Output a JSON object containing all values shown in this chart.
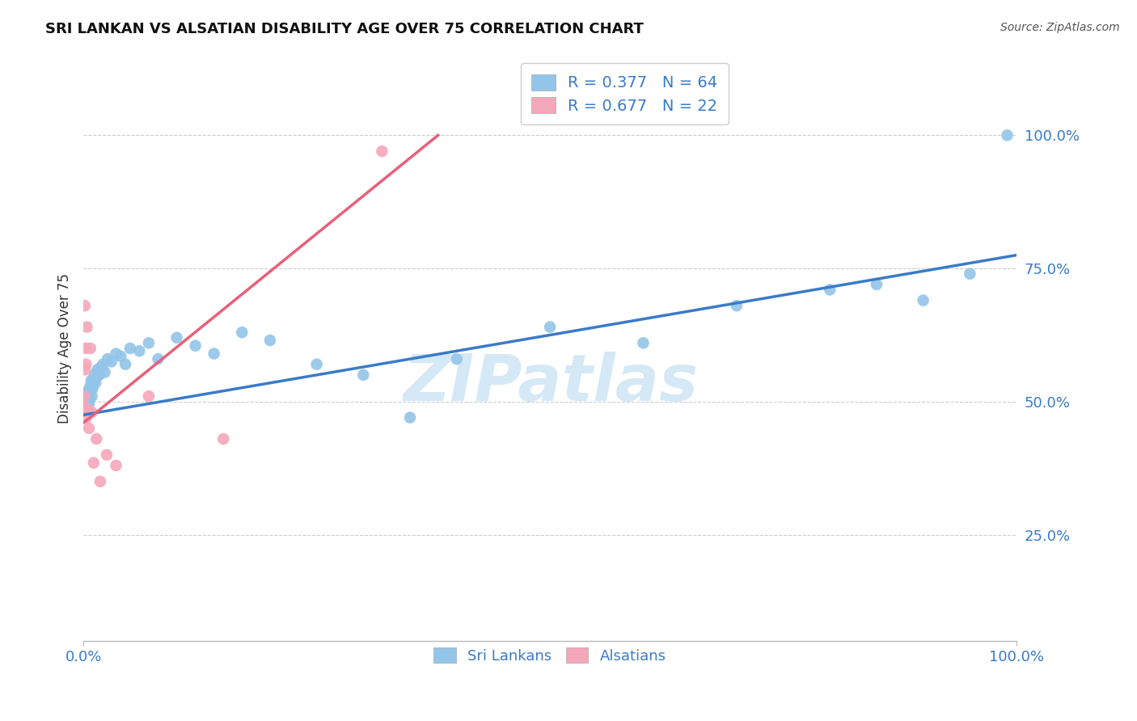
{
  "title": "SRI LANKAN VS ALSATIAN DISABILITY AGE OVER 75 CORRELATION CHART",
  "source": "Source: ZipAtlas.com",
  "ylabel": "Disability Age Over 75",
  "sri_lankan_R": 0.377,
  "sri_lankan_N": 64,
  "alsatian_R": 0.677,
  "alsatian_N": 22,
  "sri_lankan_color": "#92C5E8",
  "alsatian_color": "#F4A7B9",
  "sri_lankan_line_color": "#3A7BC8",
  "alsatian_line_color": "#E8607A",
  "legend_text_color": "#3A7BC8",
  "background_color": "#FFFFFF",
  "watermark_text": "ZIPatlas",
  "watermark_color": "#D5E8F5",
  "sri_lankans_x": [
    0.1,
    0.12,
    0.15,
    0.18,
    0.2,
    0.22,
    0.25,
    0.28,
    0.3,
    0.32,
    0.35,
    0.38,
    0.4,
    0.42,
    0.45,
    0.48,
    0.5,
    0.52,
    0.55,
    0.58,
    0.6,
    0.65,
    0.7,
    0.75,
    0.8,
    0.85,
    0.9,
    0.95,
    1.0,
    1.1,
    1.2,
    1.3,
    1.4,
    1.5,
    1.7,
    1.9,
    2.1,
    2.3,
    2.6,
    3.0,
    3.5,
    4.0,
    4.5,
    5.0,
    6.0,
    7.0,
    8.0,
    10.0,
    12.0,
    14.0,
    17.0,
    20.0,
    25.0,
    30.0,
    35.0,
    40.0,
    50.0,
    60.0,
    70.0,
    80.0,
    85.0,
    90.0,
    95.0,
    99.0
  ],
  "sri_lankans_y": [
    49.5,
    50.0,
    50.5,
    50.0,
    49.5,
    51.0,
    50.5,
    49.0,
    51.5,
    50.0,
    50.5,
    49.5,
    51.0,
    50.0,
    52.0,
    49.0,
    50.5,
    51.0,
    50.0,
    49.5,
    52.0,
    51.5,
    50.5,
    53.0,
    52.0,
    54.0,
    51.0,
    53.5,
    52.5,
    54.0,
    55.0,
    53.5,
    54.5,
    56.0,
    55.0,
    56.5,
    57.0,
    55.5,
    58.0,
    57.5,
    59.0,
    58.5,
    57.0,
    60.0,
    59.5,
    61.0,
    58.0,
    62.0,
    60.5,
    59.0,
    63.0,
    61.5,
    57.0,
    55.0,
    47.0,
    58.0,
    64.0,
    61.0,
    68.0,
    71.0,
    72.0,
    69.0,
    74.0,
    100.0
  ],
  "alsatians_x": [
    0.08,
    0.12,
    0.15,
    0.18,
    0.22,
    0.25,
    0.28,
    0.32,
    0.38,
    0.42,
    0.5,
    0.6,
    0.75,
    0.9,
    1.1,
    1.4,
    1.8,
    2.5,
    3.5,
    7.0,
    15.0,
    32.0
  ],
  "alsatians_y": [
    49.0,
    51.0,
    68.0,
    56.0,
    60.0,
    48.0,
    57.0,
    47.0,
    64.0,
    48.0,
    48.5,
    45.0,
    60.0,
    48.0,
    38.5,
    43.0,
    35.0,
    40.0,
    38.0,
    51.0,
    43.0,
    97.0
  ],
  "blue_line_x": [
    0,
    100
  ],
  "blue_line_y": [
    47.5,
    77.5
  ],
  "pink_line_x": [
    0,
    38
  ],
  "pink_line_y": [
    46.0,
    100.0
  ],
  "xmin": 0,
  "xmax": 100,
  "ymin": 5,
  "ymax": 115
}
